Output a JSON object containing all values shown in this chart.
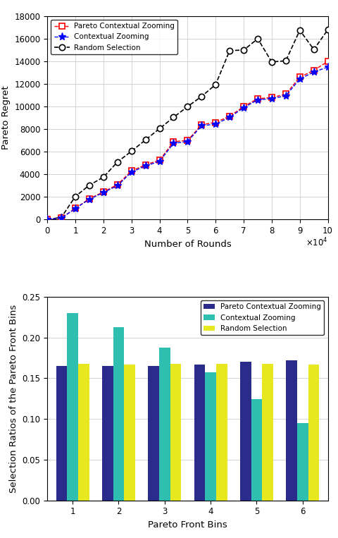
{
  "top_chart": {
    "xlabel": "Number of Rounds",
    "ylabel": "Pareto Regret",
    "xlim": [
      0,
      100000
    ],
    "ylim": [
      0,
      18000
    ],
    "xticks": [
      0,
      10000,
      20000,
      30000,
      40000,
      50000,
      60000,
      70000,
      80000,
      90000,
      100000
    ],
    "yticks": [
      0,
      2000,
      4000,
      6000,
      8000,
      10000,
      12000,
      14000,
      16000,
      18000
    ],
    "pareto_x": [
      0,
      5000,
      10000,
      15000,
      20000,
      25000,
      30000,
      35000,
      40000,
      45000,
      50000,
      55000,
      60000,
      65000,
      70000,
      75000,
      80000,
      85000,
      90000,
      95000,
      100000
    ],
    "pareto_y": [
      0,
      130,
      1000,
      1850,
      2450,
      3100,
      4300,
      4850,
      5250,
      6900,
      7000,
      8400,
      8600,
      9150,
      10000,
      10700,
      10800,
      11100,
      12600,
      13200,
      14000
    ],
    "contextual_x": [
      0,
      5000,
      10000,
      15000,
      20000,
      25000,
      30000,
      35000,
      40000,
      45000,
      50000,
      55000,
      60000,
      65000,
      70000,
      75000,
      80000,
      85000,
      90000,
      95000,
      100000
    ],
    "contextual_y": [
      0,
      130,
      980,
      1800,
      2400,
      3000,
      4200,
      4750,
      5150,
      6750,
      6900,
      8300,
      8450,
      9050,
      9900,
      10600,
      10700,
      10950,
      12450,
      13050,
      13500
    ],
    "random_x": [
      0,
      5000,
      10000,
      15000,
      20000,
      25000,
      30000,
      35000,
      40000,
      45000,
      50000,
      55000,
      60000,
      65000,
      70000,
      75000,
      80000,
      85000,
      90000,
      95000,
      100000
    ],
    "random_y": [
      0,
      200,
      2050,
      3050,
      3750,
      5100,
      6050,
      7050,
      8050,
      9050,
      10000,
      10900,
      11950,
      14950,
      15000,
      16000,
      13950,
      14050,
      16750,
      15050,
      16800
    ],
    "pareto_color": "#FF0000",
    "contextual_color": "#0000FF",
    "random_color": "#000000",
    "pareto_label": "Pareto Contextual Zooming",
    "contextual_label": "Contextual Zooming",
    "random_label": "Random Selection"
  },
  "bottom_chart": {
    "xlabel": "Pareto Front Bins",
    "ylabel": "Selection Ratios of the Pareto Front Bins",
    "bins": [
      1,
      2,
      3,
      4,
      5,
      6
    ],
    "pareto_vals": [
      0.165,
      0.165,
      0.165,
      0.167,
      0.17,
      0.172
    ],
    "contextual_vals": [
      0.23,
      0.213,
      0.188,
      0.157,
      0.124,
      0.095
    ],
    "random_vals": [
      0.168,
      0.167,
      0.168,
      0.168,
      0.168,
      0.167
    ],
    "pareto_color": "#2B2B8B",
    "contextual_color": "#2EBFB0",
    "random_color": "#E8E820",
    "pareto_label": "Pareto Contextual Zooming",
    "contextual_label": "Contextual Zooming",
    "random_label": "Random Selection",
    "ylim": [
      0,
      0.25
    ],
    "yticks": [
      0,
      0.05,
      0.1,
      0.15,
      0.2,
      0.25
    ],
    "bar_width": 0.24
  }
}
